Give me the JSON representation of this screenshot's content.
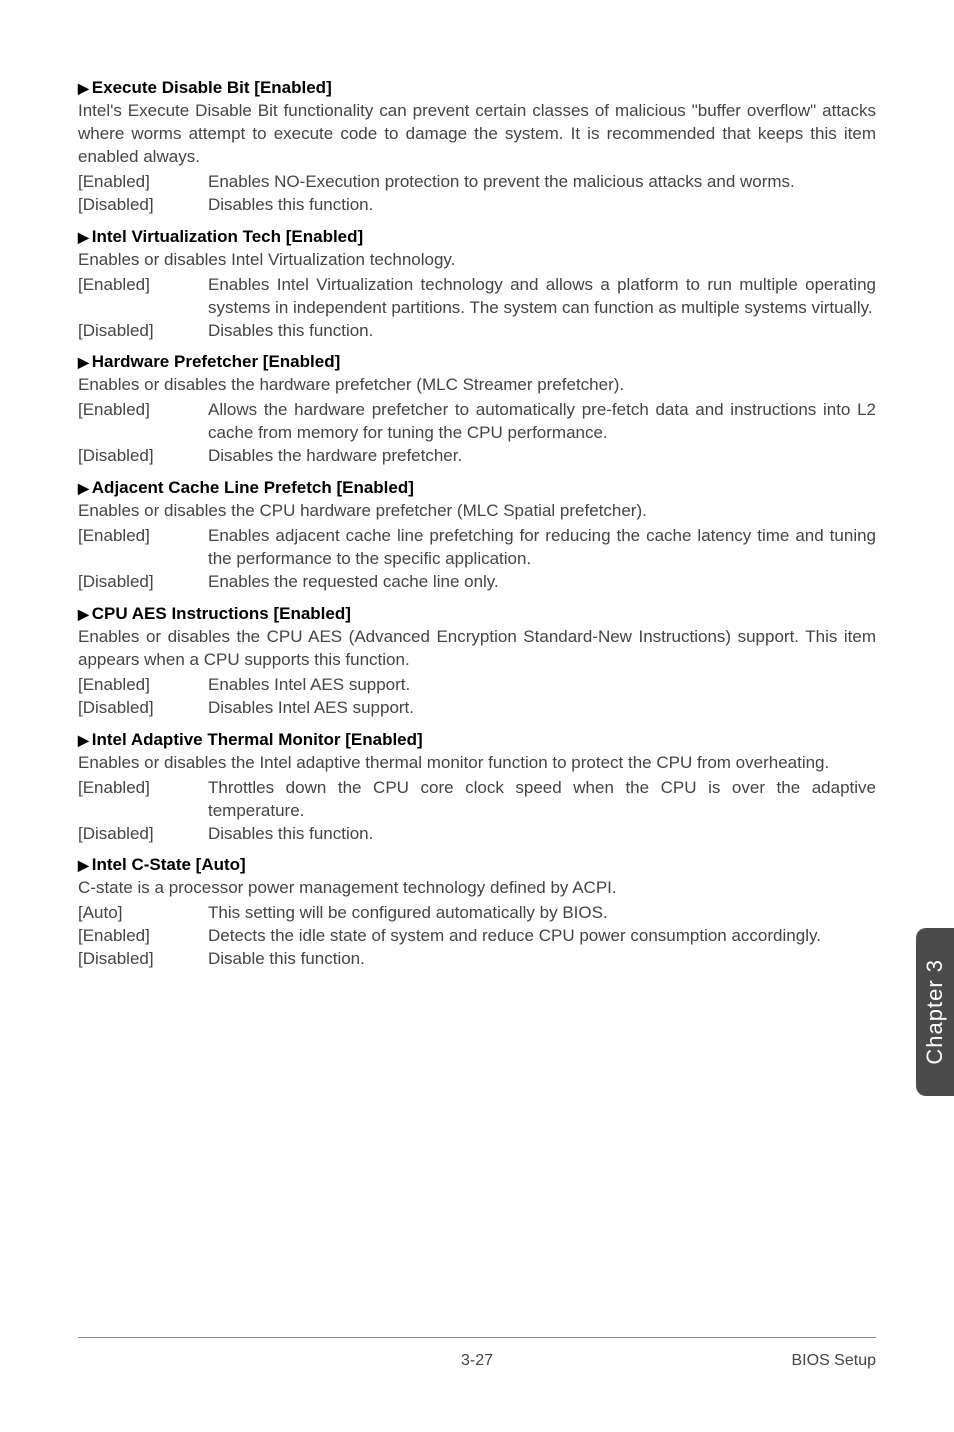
{
  "colors": {
    "body_bg": "#ffffff",
    "title_text": "#000000",
    "desc_text": "#444444",
    "sidebar_bg": "#4b4b4b",
    "sidebar_text": "#ffffff",
    "footer_line": "#888888"
  },
  "typography": {
    "title_fontsize": 17,
    "title_weight": "bold",
    "body_fontsize": 17,
    "sidebar_fontsize": 22,
    "footer_fontsize": 16,
    "font_family": "Arial, Helvetica, sans-serif"
  },
  "settings": [
    {
      "title": "Execute Disable Bit [Enabled]",
      "desc": "Intel's Execute Disable Bit functionality can prevent certain classes of malicious \"buffer overflow\" attacks where worms attempt to execute code to damage the system. It is recommended that keeps this item enabled always.",
      "options": [
        {
          "label": "[Enabled]",
          "text": "Enables NO-Execution protection to prevent the malicious attacks and worms."
        },
        {
          "label": "[Disabled]",
          "text": "Disables this function."
        }
      ]
    },
    {
      "title": "Intel Virtualization Tech [Enabled]",
      "desc": "Enables or disables Intel Virtualization technology.",
      "options": [
        {
          "label": "[Enabled]",
          "text": "Enables Intel Virtualization technology and allows a platform to run multiple operating systems in independent partitions. The system can function as multiple systems virtually."
        },
        {
          "label": "[Disabled]",
          "text": "Disables this function."
        }
      ]
    },
    {
      "title": "Hardware Prefetcher [Enabled]",
      "desc": "Enables or disables the hardware prefetcher (MLC Streamer prefetcher).",
      "options": [
        {
          "label": "[Enabled]",
          "text": "Allows the hardware prefetcher to automatically pre-fetch data and instructions into L2 cache from memory for tuning the CPU performance."
        },
        {
          "label": "[Disabled]",
          "text": "Disables the hardware prefetcher."
        }
      ]
    },
    {
      "title": "Adjacent Cache Line Prefetch [Enabled]",
      "desc": "Enables or disables the CPU hardware prefetcher (MLC Spatial prefetcher).",
      "options": [
        {
          "label": "[Enabled]",
          "text": "Enables adjacent cache line prefetching for reducing the cache latency time and tuning the performance to the specific application."
        },
        {
          "label": "[Disabled]",
          "text": "Enables the requested cache line only."
        }
      ]
    },
    {
      "title": "CPU AES Instructions [Enabled]",
      "desc": "Enables or disables the CPU AES (Advanced Encryption Standard-New Instructions) support. This item appears when a CPU supports this function.",
      "options": [
        {
          "label": "[Enabled]",
          "text": "Enables Intel AES support."
        },
        {
          "label": "[Disabled]",
          "text": "Disables Intel AES support."
        }
      ]
    },
    {
      "title": "Intel Adaptive Thermal Monitor [Enabled]",
      "desc": "Enables or disables the Intel adaptive thermal monitor function to protect the CPU from overheating.",
      "options": [
        {
          "label": "[Enabled]",
          "text": "Throttles down the CPU core clock speed when the CPU is over the adaptive temperature."
        },
        {
          "label": "[Disabled]",
          "text": "Disables this function."
        }
      ]
    },
    {
      "title": "Intel C-State [Auto]",
      "desc": "C-state is a processor power management technology defined by ACPI.",
      "options": [
        {
          "label": "[Auto]",
          "text": "This setting will be configured automatically by BIOS."
        },
        {
          "label": "[Enabled]",
          "text": "Detects the idle state of system and reduce CPU power consumption accordingly."
        },
        {
          "label": "[Disabled]",
          "text": "Disable this function."
        }
      ]
    }
  ],
  "sidebar": {
    "label": "Chapter 3"
  },
  "footer": {
    "page": "3-27",
    "section": "BIOS Setup"
  },
  "arrow_glyph": "▶"
}
